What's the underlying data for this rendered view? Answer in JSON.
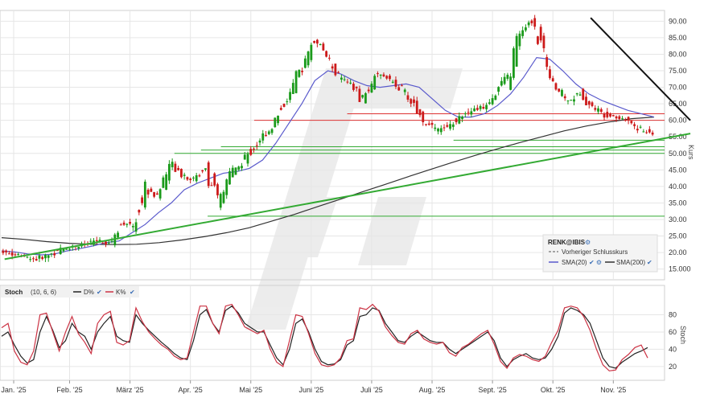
{
  "chart_data": [
    {
      "type": "candlestick",
      "ticker": "RENK@IBIS",
      "ylabel": "Kurs",
      "ylim": [
        12,
        93
      ],
      "yticks": [
        "90.00",
        "85.00",
        "80.00",
        "75.00",
        "70.00",
        "65.00",
        "60.00",
        "55.00",
        "50.00",
        "45.00",
        "40.00",
        "35.00",
        "30.00",
        "25.00",
        "20.00",
        "15.000"
      ],
      "ytick_values": [
        90,
        85,
        80,
        75,
        70,
        65,
        60,
        55,
        50,
        45,
        40,
        35,
        30,
        25,
        20,
        15
      ],
      "x_labels": [
        "Jan. '25",
        "Feb. '25",
        "März '25",
        "Apr. '25",
        "Mai '25",
        "Juni '25",
        "Juli '25",
        "Aug. '25",
        "Sept. '25",
        "Okt. '25",
        "Nov. '25"
      ],
      "x_label_positions": [
        0.8,
        4.5,
        8.5,
        12.5,
        16.5,
        20.5,
        24.5,
        28.5,
        32.5,
        36.5,
        40.5
      ],
      "grid": true,
      "legend_position": "bottom-right",
      "legend": {
        "title": "RENK@IBIS",
        "prev_close": "Vorheriger Schlusskurs",
        "sma20": "SMA(20)",
        "sma200": "SMA(200)"
      },
      "colors": {
        "up": "#1a9a1a",
        "down": "#cc1a1a",
        "sma20": "#5a5acc",
        "sma200": "#333333",
        "support": "#33aa33",
        "resistance": "#dd3333",
        "trend_down": "#111111"
      },
      "closes_weekly": [
        20.5,
        19.8,
        18.6,
        18.0,
        19.2,
        21.0,
        21.8,
        22.3,
        23.5,
        22.6,
        29.0,
        28.0,
        39.0,
        37.0,
        47.0,
        44.0,
        42.0,
        46.0,
        35.0,
        44.0,
        47.0,
        52.0,
        56.0,
        62.0,
        68.0,
        76.0,
        85.0,
        79.0,
        73.0,
        71.0,
        66.0,
        74.0,
        73.0,
        70.0,
        66.0,
        60.0,
        57.0,
        58.0,
        61.0,
        63.0,
        64.0,
        69.0,
        73.0,
        86.0,
        90.0,
        81.0,
        70.0,
        66.0,
        68.0,
        64.0,
        62.0,
        61.0,
        60.0,
        57.0,
        56.0
      ],
      "sma20_values": [
        20.5,
        20.2,
        19.6,
        19.3,
        19.5,
        20.5,
        21.2,
        22.0,
        23.0,
        23.5,
        26.0,
        28.5,
        32.0,
        35.0,
        39.0,
        41.0,
        42.5,
        44.0,
        44.5,
        45.5,
        48.0,
        53.0,
        59.0,
        65.0,
        72.0,
        75.0,
        74.0,
        72.0,
        70.5,
        70.0,
        70.5,
        71.0,
        70.0,
        66.5,
        63.0,
        61.0,
        61.0,
        62.0,
        64.5,
        68.0,
        73.0,
        79.0,
        78.5,
        75.0,
        71.0,
        68.0,
        66.0,
        64.5,
        63.0,
        62.0,
        61.0
      ],
      "sma200_values": [
        24.5,
        24.0,
        23.3,
        22.8,
        22.5,
        22.4,
        22.5,
        23.0,
        23.8,
        24.8,
        26.0,
        27.5,
        29.5,
        31.5,
        33.8,
        36.0,
        38.3,
        40.5,
        42.8,
        45.0,
        47.2,
        49.3,
        51.3,
        53.2,
        55.0,
        56.8,
        58.3,
        59.5,
        60.5,
        61.0
      ],
      "horizontal_levels": [
        {
          "value": 62.0,
          "color": "resistance"
        },
        {
          "value": 60.0,
          "color": "resistance"
        },
        {
          "value": 54.0,
          "color": "support"
        },
        {
          "value": 52.0,
          "color": "support"
        },
        {
          "value": 51.0,
          "color": "support"
        },
        {
          "value": 50.0,
          "color": "support"
        },
        {
          "value": 31.0,
          "color": "support"
        }
      ],
      "trendlines": [
        {
          "from": [
            0.2,
            18.0
          ],
          "to": [
            45.6,
            56.0
          ],
          "color": "support"
        },
        {
          "from": [
            39.0,
            91.0
          ],
          "to": [
            45.6,
            60.0
          ],
          "color": "trend_down"
        }
      ]
    },
    {
      "type": "line",
      "indicator": "Stoch",
      "params": "(10, 6, 6)",
      "series": [
        {
          "name": "D%",
          "color": "#222222",
          "values": [
            55,
            60,
            45,
            32,
            24,
            28,
            60,
            78,
            62,
            42,
            50,
            70,
            60,
            55,
            40,
            60,
            70,
            78,
            55,
            50,
            48,
            80,
            70,
            62,
            55,
            48,
            42,
            35,
            30,
            28,
            50,
            80,
            86,
            70,
            60,
            85,
            90,
            82,
            70,
            65,
            60,
            60,
            45,
            30,
            22,
            40,
            70,
            75,
            60,
            40,
            26,
            22,
            23,
            28,
            45,
            50,
            78,
            80,
            88,
            85,
            70,
            60,
            50,
            48,
            55,
            60,
            55,
            50,
            48,
            48,
            40,
            35,
            40,
            45,
            50,
            55,
            60,
            50,
            30,
            20,
            28,
            32,
            35,
            30,
            28,
            30,
            40,
            55,
            82,
            88,
            85,
            80,
            70,
            50,
            30,
            20,
            18,
            25,
            30,
            35,
            38,
            42
          ]
        },
        {
          "name": "K%",
          "color": "#cc3344",
          "values": [
            65,
            70,
            38,
            25,
            22,
            38,
            80,
            82,
            60,
            38,
            60,
            78,
            58,
            48,
            35,
            70,
            80,
            84,
            48,
            45,
            50,
            88,
            72,
            60,
            52,
            45,
            40,
            32,
            28,
            30,
            60,
            90,
            90,
            70,
            58,
            90,
            92,
            80,
            66,
            62,
            58,
            62,
            40,
            25,
            20,
            50,
            80,
            78,
            58,
            35,
            22,
            20,
            22,
            30,
            50,
            52,
            88,
            86,
            92,
            84,
            66,
            56,
            48,
            46,
            58,
            62,
            52,
            48,
            46,
            48,
            36,
            32,
            42,
            46,
            52,
            58,
            62,
            46,
            26,
            18,
            30,
            34,
            32,
            28,
            26,
            32,
            48,
            62,
            88,
            90,
            88,
            78,
            62,
            40,
            22,
            15,
            16,
            28,
            34,
            42,
            45,
            30
          ]
        }
      ],
      "ylim": [
        5,
        100
      ],
      "yticks": [
        "80",
        "60",
        "40",
        "20"
      ],
      "ytick_values": [
        80,
        60,
        40,
        20
      ],
      "ylabel": "Stoch"
    }
  ]
}
